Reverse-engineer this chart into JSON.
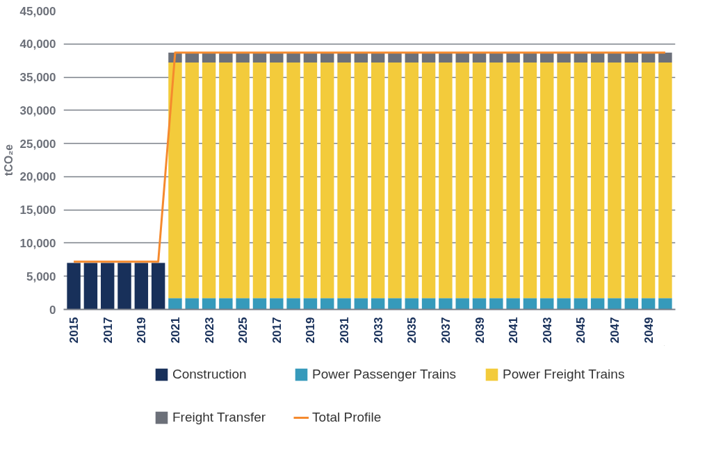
{
  "chart_data": {
    "type": "bar",
    "stacked": true,
    "ylabel": "tCO₂e",
    "categories": [
      "2015",
      null,
      "2017",
      null,
      "2019",
      null,
      "2021",
      null,
      "2023",
      null,
      "2025",
      null,
      "2017",
      null,
      "2019",
      null,
      "2031",
      null,
      "2033",
      null,
      "2035",
      null,
      "2037",
      null,
      "2039",
      null,
      "2041",
      null,
      "2043",
      null,
      "2045",
      null,
      "2047",
      null,
      "2049",
      null
    ],
    "series": [
      {
        "name": "Construction",
        "color": "#18305a",
        "values": [
          7000,
          7000,
          7000,
          7000,
          7000,
          7000,
          0,
          0,
          0,
          0,
          0,
          0,
          0,
          0,
          0,
          0,
          0,
          0,
          0,
          0,
          0,
          0,
          0,
          0,
          0,
          0,
          0,
          0,
          0,
          0,
          0,
          0,
          0,
          0,
          0,
          0
        ]
      },
      {
        "name": "Power Passenger Trains",
        "color": "#369abb",
        "values": [
          0,
          0,
          0,
          0,
          0,
          0,
          1700,
          1700,
          1700,
          1700,
          1700,
          1700,
          1700,
          1700,
          1700,
          1700,
          1700,
          1700,
          1700,
          1700,
          1700,
          1700,
          1700,
          1700,
          1700,
          1700,
          1700,
          1700,
          1700,
          1700,
          1700,
          1700,
          1700,
          1700,
          1700,
          1700
        ]
      },
      {
        "name": "Power Freight Trains",
        "color": "#f3cb3b",
        "values": [
          0,
          0,
          0,
          0,
          0,
          0,
          35500,
          35500,
          35500,
          35500,
          35500,
          35500,
          35500,
          35500,
          35500,
          35500,
          35500,
          35500,
          35500,
          35500,
          35500,
          35500,
          35500,
          35500,
          35500,
          35500,
          35500,
          35500,
          35500,
          35500,
          35500,
          35500,
          35500,
          35500,
          35500,
          35500
        ]
      },
      {
        "name": "Freight Transfer",
        "color": "#6c7079",
        "values": [
          0,
          0,
          0,
          0,
          0,
          0,
          1500,
          1500,
          1500,
          1500,
          1500,
          1500,
          1500,
          1500,
          1500,
          1500,
          1500,
          1500,
          1500,
          1500,
          1500,
          1500,
          1500,
          1500,
          1500,
          1500,
          1500,
          1500,
          1500,
          1500,
          1500,
          1500,
          1500,
          1500,
          1500,
          1500
        ]
      },
      {
        "name": "Total Profile",
        "type": "line",
        "color": "#f58a2e",
        "values": [
          7200,
          7200,
          7200,
          7200,
          7200,
          7200,
          38700,
          38700,
          38700,
          38700,
          38700,
          38700,
          38700,
          38700,
          38700,
          38700,
          38700,
          38700,
          38700,
          38700,
          38700,
          38700,
          38700,
          38700,
          38700,
          38700,
          38700,
          38700,
          38700,
          38700,
          38700,
          38700,
          38700,
          38700,
          38700,
          38700
        ]
      }
    ],
    "ylim": [
      0,
      45000
    ],
    "yticks": [
      0,
      {
        "value": 5000,
        "label": "5,000"
      },
      {
        "value": 10000,
        "label": "10,000"
      },
      {
        "value": 15000,
        "label": "15,000"
      },
      {
        "value": 20000,
        "label": "20,000"
      },
      {
        "value": 25000,
        "label": "25,000"
      },
      {
        "value": 30000,
        "label": "30,000"
      },
      {
        "value": 35000,
        "label": "35,000"
      },
      {
        "value": 40000,
        "label": "40,000"
      },
      {
        "value": 45000,
        "label": "45,000"
      }
    ],
    "grid": "y",
    "legend": "bottom"
  }
}
